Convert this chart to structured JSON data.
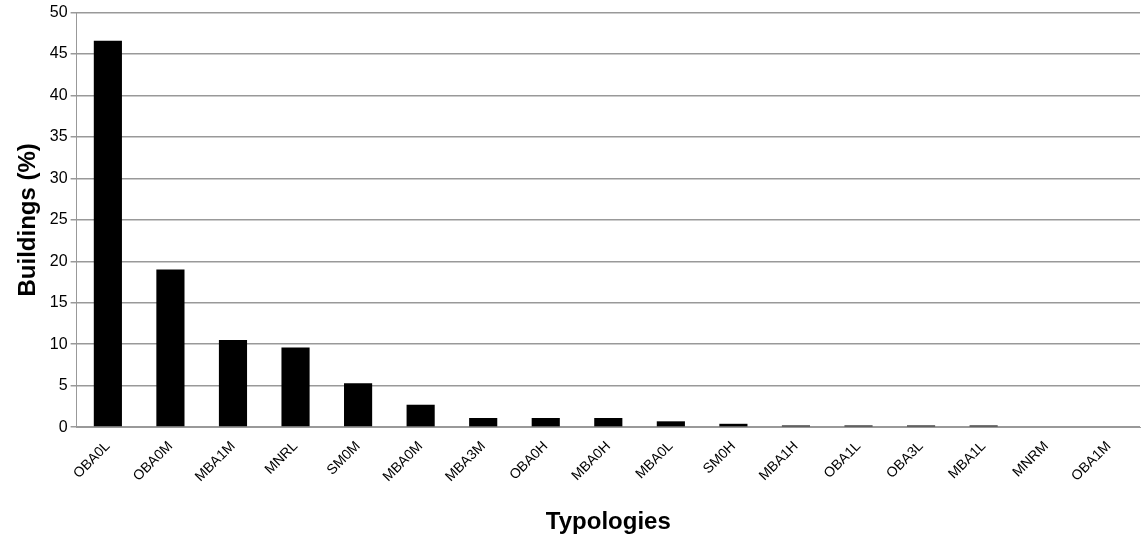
{
  "chart_data": {
    "type": "bar",
    "xlabel": "Typologies",
    "ylabel": "Buildings (%)",
    "categories": [
      "OBA0L",
      "OBA0M",
      "MBA1M",
      "MNRL",
      "SM0M",
      "MBA0M",
      "MBA3M",
      "OBA0H",
      "MBA0H",
      "MBA0L",
      "SM0H",
      "MBA1H",
      "OBA1L",
      "OBA3L",
      "MBA1L",
      "MNRM",
      "OBA1M"
    ],
    "values": [
      46.6,
      19,
      10.5,
      9.6,
      5.3,
      2.7,
      1.1,
      1.1,
      1.1,
      0.7,
      0.4,
      0.2,
      0.2,
      0.2,
      0.2,
      0,
      0
    ],
    "color": "#000000",
    "ylim": [
      0,
      50
    ],
    "yticks": [
      0,
      5,
      10,
      15,
      20,
      25,
      30,
      35,
      40,
      45,
      50
    ],
    "grid": "y"
  }
}
